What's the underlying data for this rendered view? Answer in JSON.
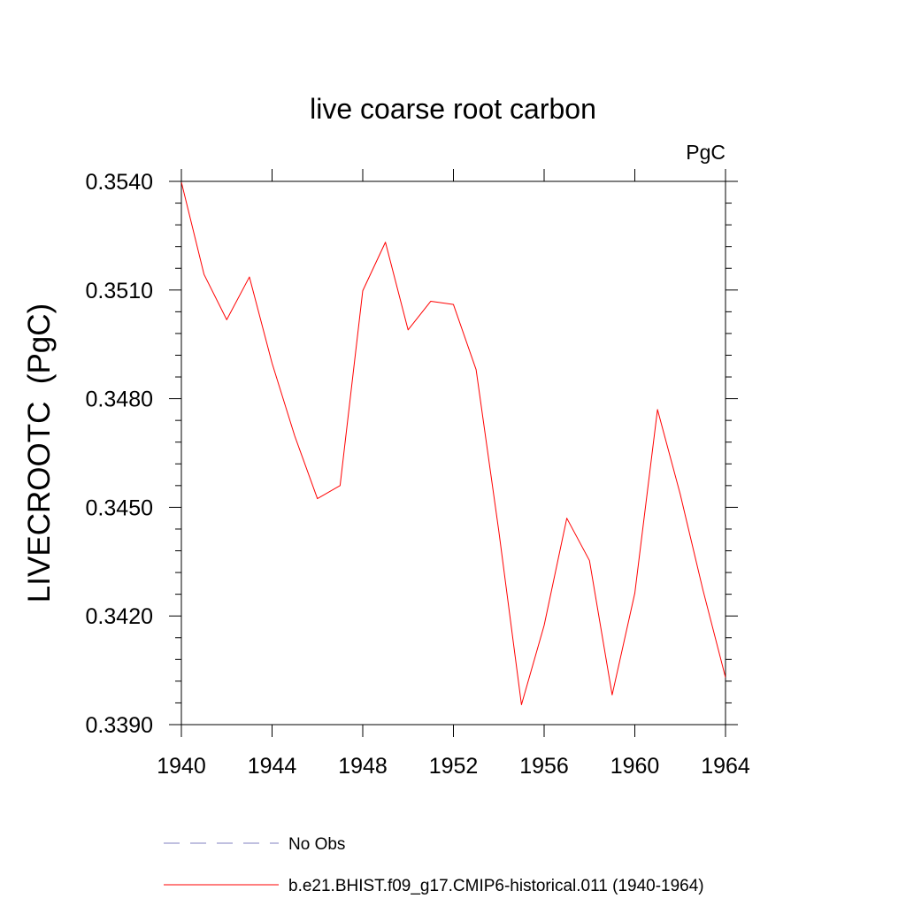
{
  "chart_data": {
    "type": "line",
    "title": "live coarse root carbon",
    "units_label": "PgC",
    "ylabel": "LIVECROOTC  (PgC)",
    "xlabel": "",
    "xlim": [
      1940,
      1964
    ],
    "ylim": [
      0.339,
      0.354
    ],
    "x_ticks": [
      1940,
      1944,
      1948,
      1952,
      1956,
      1960,
      1964
    ],
    "x_tick_labels": [
      "1940",
      "1944",
      "1948",
      "1952",
      "1956",
      "1960",
      "1964"
    ],
    "y_ticks": [
      0.339,
      0.342,
      0.345,
      0.348,
      0.351,
      0.354
    ],
    "y_tick_labels": [
      "0.3390",
      "0.3420",
      "0.3450",
      "0.3480",
      "0.3510",
      "0.3540"
    ],
    "grid": false,
    "legend_position": "bottom",
    "series": [
      {
        "name": "b.e21.BHIST.f09_g17.CMIP6-historical.011 (1940-1964)",
        "color": "#ff0000",
        "dash": "solid",
        "x": [
          1940,
          1941,
          1942,
          1943,
          1944,
          1945,
          1946,
          1947,
          1948,
          1949,
          1950,
          1951,
          1952,
          1953,
          1954,
          1955,
          1956,
          1957,
          1958,
          1959,
          1960,
          1961,
          1962,
          1963,
          1964
        ],
        "y": [
          0.35398,
          0.35143,
          0.35018,
          0.35136,
          0.34898,
          0.34697,
          0.34524,
          0.3456,
          0.35098,
          0.35232,
          0.3499,
          0.35069,
          0.3506,
          0.3488,
          0.34435,
          0.33955,
          0.34174,
          0.3447,
          0.34353,
          0.33982,
          0.34263,
          0.3477,
          0.34537,
          0.34273,
          0.3403
        ]
      }
    ],
    "legend": [
      {
        "label": "No Obs",
        "color": "#8080c0",
        "dash": "dashed"
      },
      {
        "label": "b.e21.BHIST.f09_g17.CMIP6-historical.011 (1940-1964)",
        "color": "#ff0000",
        "dash": "solid"
      }
    ]
  }
}
